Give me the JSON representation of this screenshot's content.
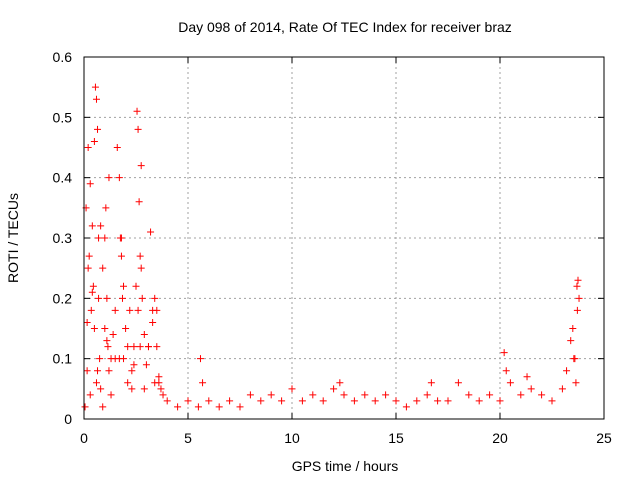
{
  "chart_data": {
    "type": "scatter",
    "title": "Day 098 of 2014, Rate Of TEC Index for receiver braz",
    "xlabel": "GPS time / hours",
    "ylabel": "ROTI / TECUs",
    "xlim": [
      0,
      25
    ],
    "ylim": [
      0,
      0.6
    ],
    "xticks": [
      0,
      5,
      10,
      15,
      20,
      25
    ],
    "yticks": [
      0,
      0.1,
      0.2,
      0.3,
      0.4,
      0.5,
      0.6
    ],
    "xtick_labels": [
      "0",
      "5",
      "10",
      "15",
      "20",
      "25"
    ],
    "ytick_labels": [
      "0",
      "0.1",
      "0.2",
      "0.3",
      "0.4",
      "0.5",
      "0.6"
    ],
    "grid": true,
    "marker": "plus",
    "color": "#ff0000",
    "series": [
      {
        "name": "ROTI",
        "x": [
          0.05,
          0.1,
          0.15,
          0.2,
          0.25,
          0.3,
          0.35,
          0.4,
          0.45,
          0.5,
          0.55,
          0.6,
          0.65,
          0.7,
          0.75,
          0.8,
          0.9,
          1.0,
          1.05,
          1.1,
          1.15,
          1.2,
          1.3,
          1.4,
          1.5,
          1.6,
          1.7,
          1.75,
          1.8,
          1.85,
          1.9,
          2.0,
          2.1,
          2.2,
          2.3,
          2.4,
          2.5,
          2.55,
          2.6,
          2.65,
          2.7,
          2.75,
          2.8,
          2.9,
          3.0,
          3.1,
          3.2,
          3.3,
          3.4,
          3.5,
          3.6,
          3.7,
          3.8,
          4.0,
          4.5,
          5.0,
          5.5,
          5.6,
          5.7,
          6.0,
          6.5,
          7.0,
          7.5,
          8.0,
          8.5,
          9.0,
          9.5,
          10.0,
          10.5,
          11.0,
          11.5,
          12.0,
          12.3,
          12.5,
          13.0,
          13.5,
          14.0,
          14.5,
          15.0,
          15.5,
          16.0,
          16.5,
          16.7,
          17.0,
          17.5,
          18.0,
          18.5,
          19.0,
          19.5,
          20.0,
          20.2,
          20.3,
          20.5,
          21.0,
          21.3,
          21.5,
          22.0,
          22.5,
          23.0,
          23.2,
          23.4,
          23.5,
          23.6,
          23.7,
          23.75,
          23.8,
          0.3,
          0.5,
          0.6,
          0.7,
          1.1,
          1.2,
          1.8,
          1.9,
          2.6,
          2.7,
          2.75,
          3.4,
          3.5,
          0.4,
          0.8,
          1.5,
          2.3,
          3.1,
          0.15,
          0.9,
          1.3,
          2.1,
          2.9,
          3.6,
          0.2,
          0.65,
          1.0,
          1.7,
          2.4,
          3.3,
          23.55,
          23.65,
          23.72
        ],
        "y": [
          0.02,
          0.35,
          0.16,
          0.45,
          0.27,
          0.39,
          0.18,
          0.32,
          0.22,
          0.46,
          0.55,
          0.53,
          0.48,
          0.3,
          0.1,
          0.05,
          0.25,
          0.3,
          0.35,
          0.2,
          0.12,
          0.08,
          0.1,
          0.14,
          0.18,
          0.45,
          0.4,
          0.3,
          0.27,
          0.2,
          0.1,
          0.15,
          0.12,
          0.18,
          0.08,
          0.12,
          0.22,
          0.51,
          0.48,
          0.36,
          0.27,
          0.42,
          0.2,
          0.14,
          0.09,
          0.12,
          0.31,
          0.18,
          0.2,
          0.12,
          0.06,
          0.05,
          0.04,
          0.03,
          0.02,
          0.03,
          0.02,
          0.1,
          0.06,
          0.03,
          0.02,
          0.03,
          0.02,
          0.04,
          0.03,
          0.04,
          0.03,
          0.05,
          0.03,
          0.04,
          0.03,
          0.05,
          0.06,
          0.04,
          0.03,
          0.04,
          0.03,
          0.04,
          0.03,
          0.02,
          0.03,
          0.04,
          0.06,
          0.03,
          0.03,
          0.06,
          0.04,
          0.03,
          0.04,
          0.03,
          0.11,
          0.08,
          0.06,
          0.04,
          0.07,
          0.05,
          0.04,
          0.03,
          0.05,
          0.08,
          0.13,
          0.15,
          0.1,
          0.22,
          0.23,
          0.2,
          0.04,
          0.15,
          0.06,
          0.2,
          0.13,
          0.4,
          0.3,
          0.22,
          0.18,
          0.12,
          0.25,
          0.06,
          0.18,
          0.21,
          0.32,
          0.1,
          0.05,
          0.12,
          0.08,
          0.02,
          0.04,
          0.06,
          0.05,
          0.07,
          0.25,
          0.08,
          0.15,
          0.1,
          0.09,
          0.16,
          0.1,
          0.06,
          0.18
        ]
      }
    ]
  }
}
